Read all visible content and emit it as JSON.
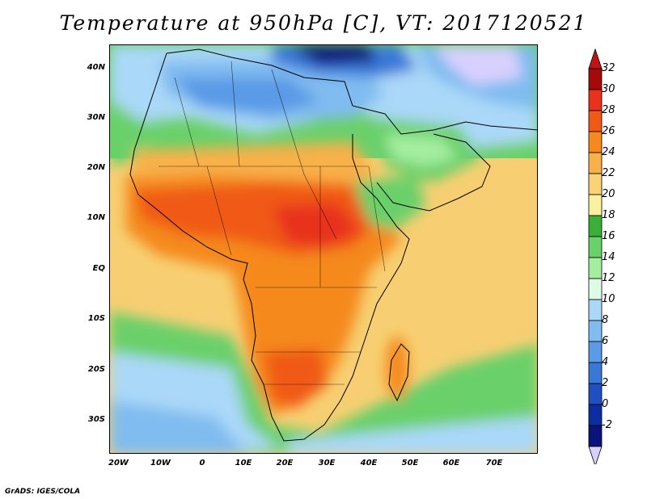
{
  "title": "Temperature at 950hPa [C], VT: 2017120521",
  "footer": "GrADS: IGES/COLA",
  "x_ticks": [
    "20W",
    "10W",
    "0",
    "10E",
    "20E",
    "30E",
    "40E",
    "50E",
    "60E",
    "70E"
  ],
  "y_ticks": [
    "40N",
    "30N",
    "20N",
    "10N",
    "EQ",
    "10S",
    "20S",
    "30S"
  ],
  "colorbar": {
    "labels": [
      "32",
      "30",
      "28",
      "26",
      "24",
      "22",
      "20",
      "18",
      "16",
      "14",
      "12",
      "10",
      "8",
      "6",
      "4",
      "2",
      "0",
      "-2"
    ],
    "colors": [
      "#a50a0a",
      "#e8321e",
      "#f05a14",
      "#f5891e",
      "#f8b04a",
      "#fad278",
      "#faf0a0",
      "#3ab03a",
      "#6ad06a",
      "#a5eea0",
      "#e0fae8",
      "#aad8f8",
      "#80bcf0",
      "#5a9ae6",
      "#3a78d8",
      "#2050c0",
      "#0a2ea0",
      "#0a1478"
    ],
    "top_arrow_color": "#c01414",
    "bottom_arrow_color": "#d8d0ff"
  }
}
